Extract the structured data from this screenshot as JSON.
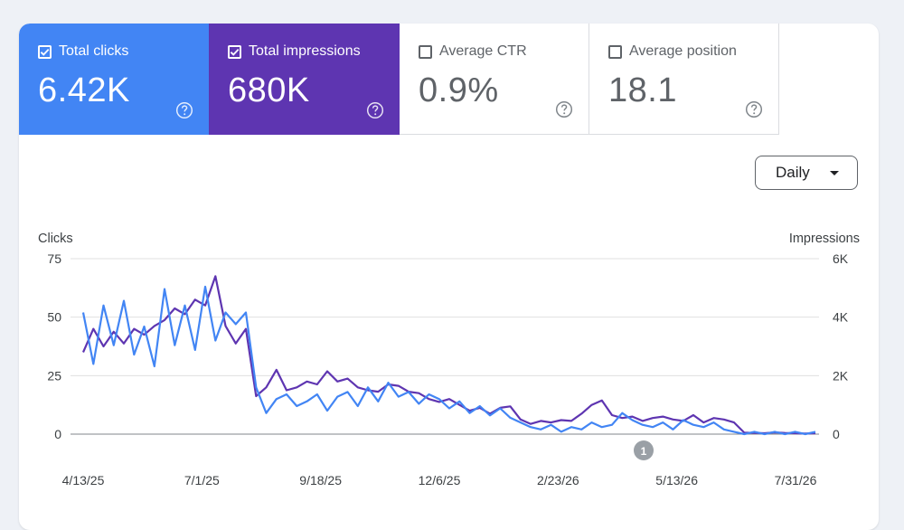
{
  "metrics": [
    {
      "label": "Total clicks",
      "value": "6.42K",
      "checked": true
    },
    {
      "label": "Total impressions",
      "value": "680K",
      "checked": true
    },
    {
      "label": "Average CTR",
      "value": "0.9%",
      "checked": false
    },
    {
      "label": "Average position",
      "value": "18.1",
      "checked": false
    }
  ],
  "period_selector": {
    "label": "Daily"
  },
  "annotation_marker": "1",
  "colors": {
    "clicks": "#4285f4",
    "impressions": "#5e35b1",
    "grid": "#e0e0e0",
    "axis": "#5f6368"
  },
  "chart_data": {
    "type": "line",
    "xlabel": "",
    "x_tick_labels": [
      "4/13/25",
      "7/1/25",
      "9/18/25",
      "12/6/25",
      "2/23/26",
      "5/13/26",
      "7/31/26"
    ],
    "y_left": {
      "label": "Clicks",
      "ticks": [
        "0",
        "25",
        "50",
        "75"
      ],
      "range": [
        0,
        75
      ]
    },
    "y_right": {
      "label": "Impressions",
      "ticks": [
        "0",
        "2K",
        "4K",
        "6K"
      ],
      "range": [
        0,
        6000
      ]
    },
    "grid": true,
    "series": [
      {
        "axis": "left",
        "note": "Total clicks, sampled about every 4 days",
        "values": [
          52,
          30,
          55,
          38,
          57,
          34,
          46,
          29,
          62,
          38,
          55,
          36,
          63,
          40,
          52,
          47,
          52,
          20,
          9,
          15,
          17,
          12,
          14,
          17,
          10,
          16,
          18,
          12,
          20,
          14,
          22,
          16,
          18,
          13,
          17,
          15,
          11,
          14,
          9,
          12,
          8,
          11,
          7,
          5,
          3,
          2,
          4,
          1,
          3,
          2,
          5,
          3,
          4,
          9,
          6,
          4,
          3,
          5,
          2,
          6,
          4,
          3,
          5,
          2,
          1,
          0,
          1,
          0,
          1,
          0,
          1,
          0,
          1
        ]
      },
      {
        "axis": "right",
        "note": "Total impressions, sampled about every 4 days",
        "values": [
          2800,
          3600,
          3000,
          3500,
          3100,
          3600,
          3400,
          3700,
          3900,
          4300,
          4100,
          4600,
          4400,
          5400,
          3700,
          3100,
          3600,
          1300,
          1600,
          2200,
          1500,
          1600,
          1800,
          1700,
          2150,
          1800,
          1900,
          1600,
          1500,
          1450,
          1700,
          1650,
          1450,
          1400,
          1200,
          1100,
          1200,
          1000,
          800,
          900,
          700,
          900,
          950,
          500,
          350,
          450,
          400,
          480,
          450,
          700,
          1000,
          1150,
          650,
          550,
          600,
          450,
          550,
          600,
          500,
          450,
          650,
          400,
          550,
          500,
          400,
          50,
          40,
          30,
          60,
          40,
          30,
          20,
          30
        ]
      }
    ]
  }
}
